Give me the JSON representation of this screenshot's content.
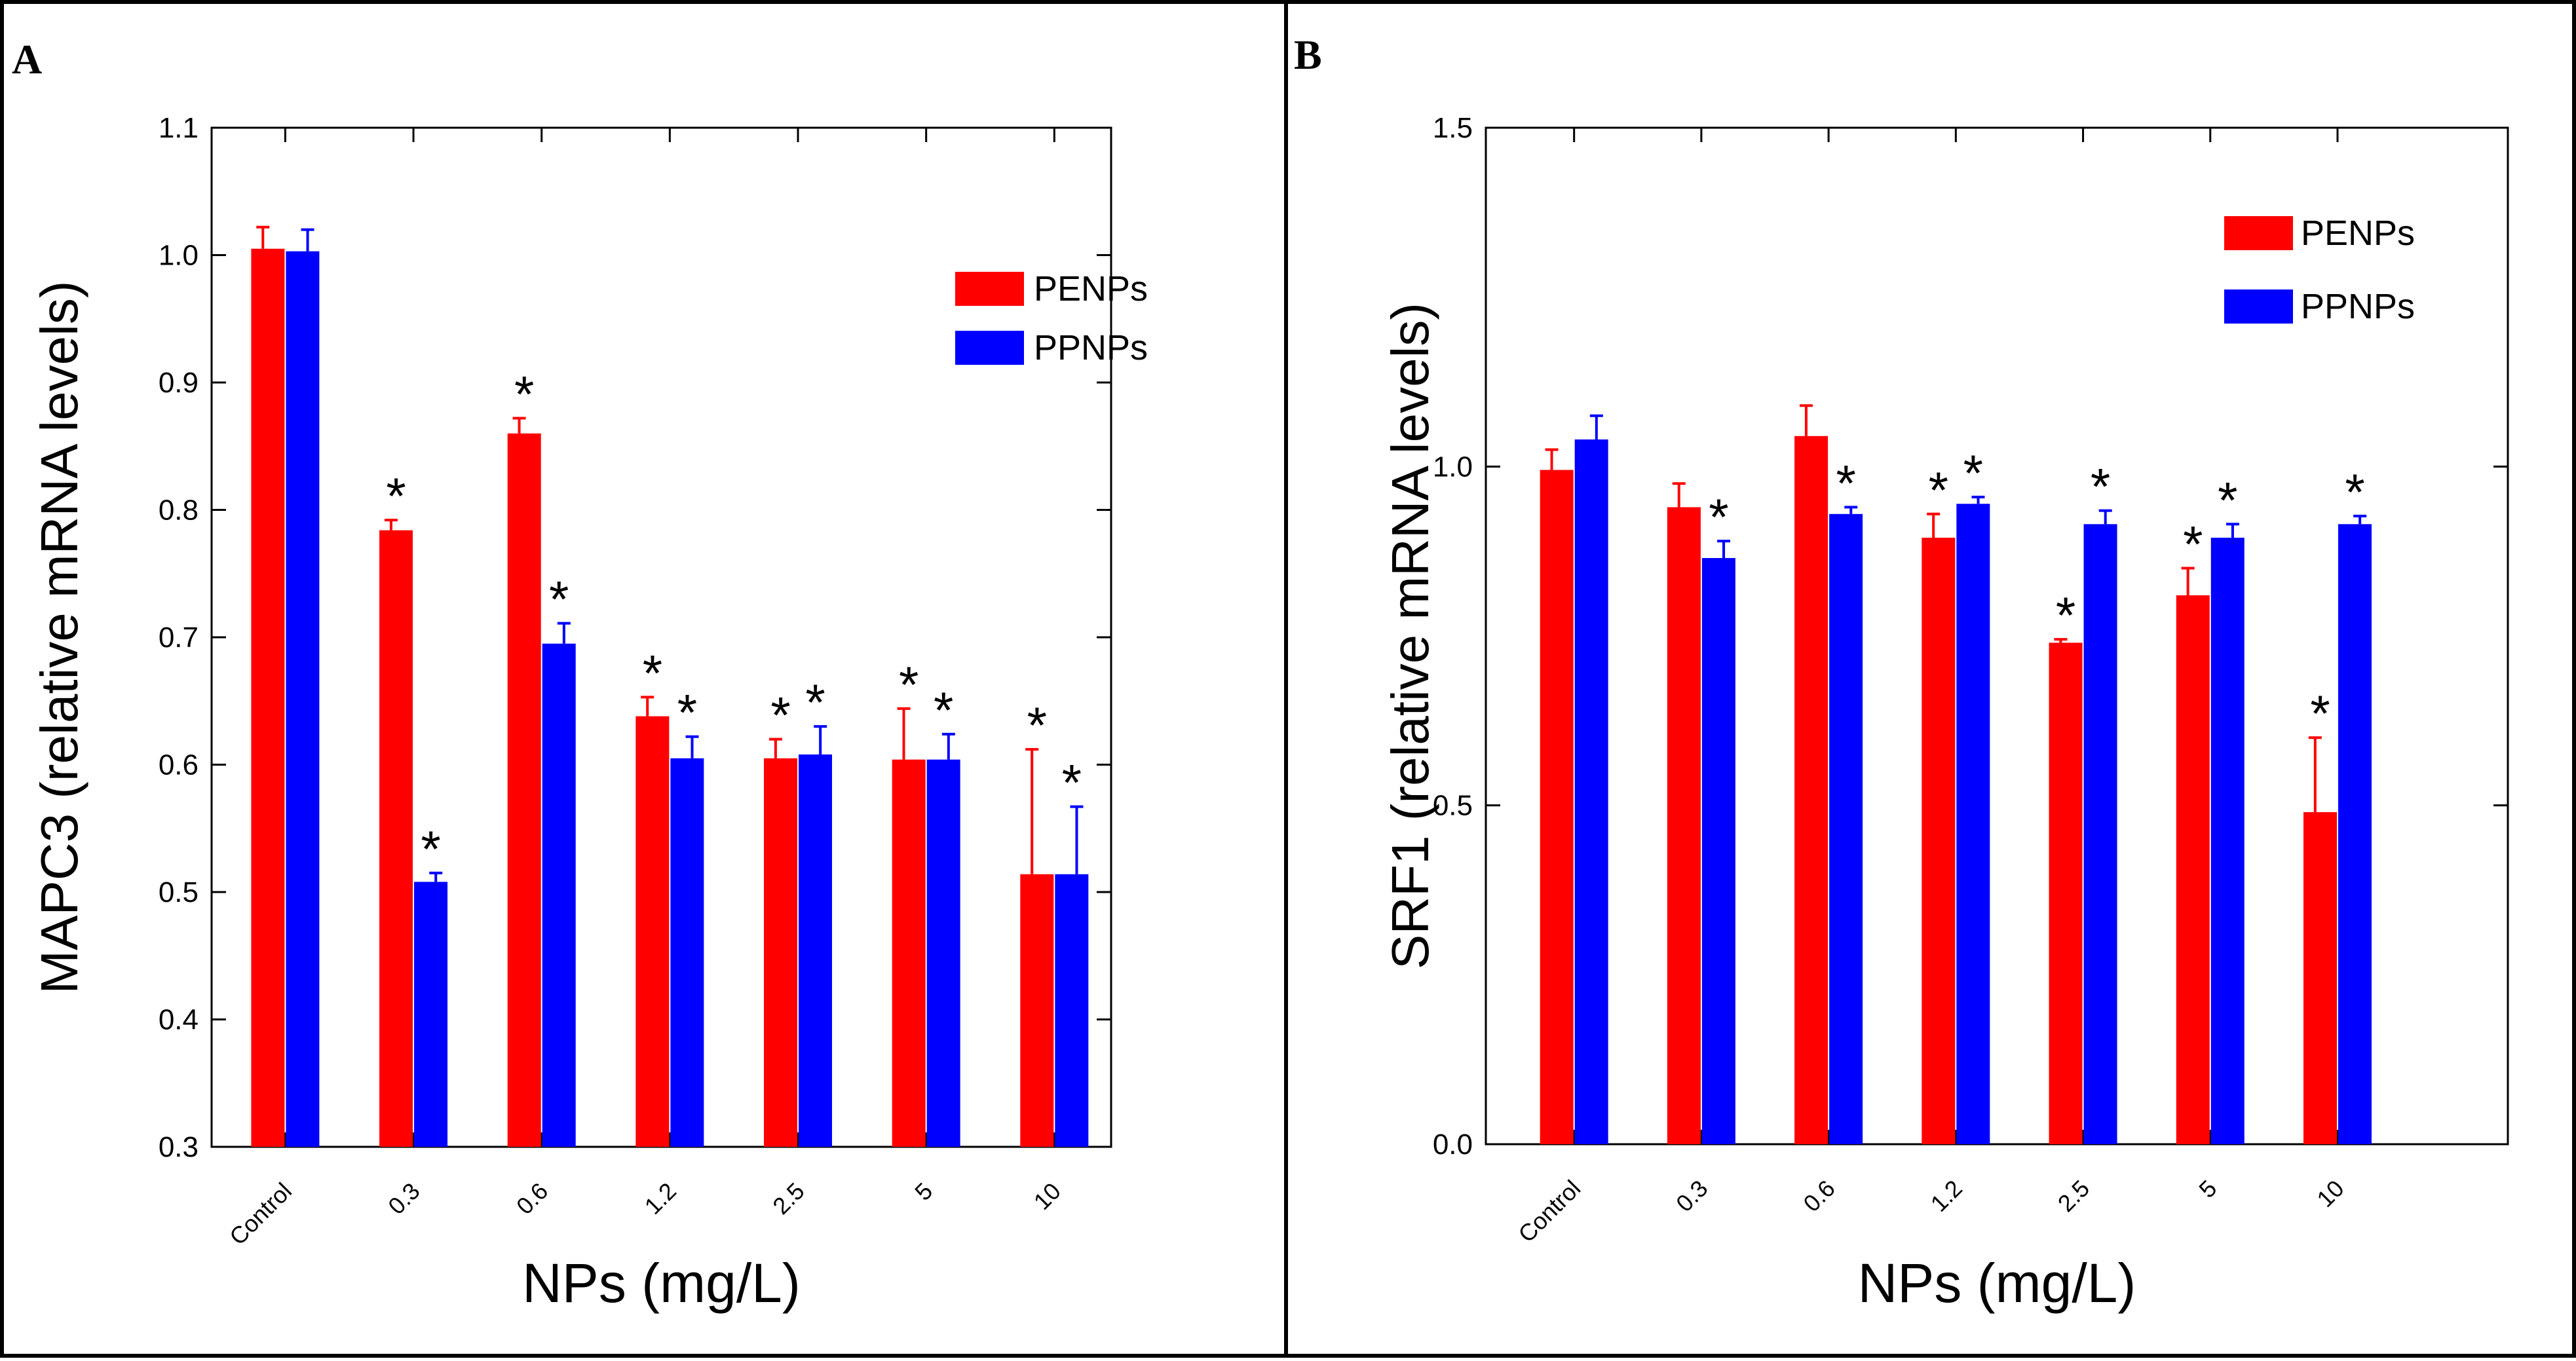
{
  "figure": {
    "panels": [
      "A",
      "B"
    ]
  },
  "colors": {
    "penps": "#ff0000",
    "ppnps": "#0000ff",
    "axis": "#000000",
    "background": "#ffffff"
  },
  "chart_data": [
    {
      "panel": "A",
      "type": "bar",
      "title": "",
      "xlabel": "NPs (mg/L)",
      "ylabel": "MAPC3 (relative mRNA levels)",
      "ylim": [
        0.3,
        1.1
      ],
      "yticks": [
        0.3,
        0.4,
        0.5,
        0.6,
        0.7,
        0.8,
        0.9,
        1.0,
        1.1
      ],
      "ytick_labels": [
        "0.3",
        "0.4",
        "0.5",
        "0.6",
        "0.7",
        "0.8",
        "0.9",
        "1.0",
        "1.1"
      ],
      "categories": [
        "Control",
        "0.3",
        "0.6",
        "1.2",
        "2.5",
        "5",
        "10"
      ],
      "legend_position": "top-right",
      "grid": false,
      "series": [
        {
          "name": "PENPs",
          "color": "#ff0000",
          "values": [
            1.005,
            0.784,
            0.86,
            0.638,
            0.605,
            0.604,
            0.514
          ],
          "errors": [
            0.017,
            0.008,
            0.012,
            0.015,
            0.015,
            0.04,
            0.098
          ],
          "significance": [
            "",
            "*",
            "*",
            "*",
            "*",
            "*",
            "*"
          ]
        },
        {
          "name": "PPNPs",
          "color": "#0000ff",
          "values": [
            1.003,
            0.508,
            0.695,
            0.605,
            0.608,
            0.604,
            0.514
          ],
          "errors": [
            0.017,
            0.007,
            0.016,
            0.017,
            0.022,
            0.02,
            0.053
          ],
          "significance": [
            "",
            "*",
            "*",
            "*",
            "*",
            "*",
            "*"
          ]
        }
      ]
    },
    {
      "panel": "B",
      "type": "bar",
      "title": "",
      "xlabel": "NPs (mg/L)",
      "ylabel": "SRF1 (relative mRNA levels)",
      "ylim": [
        0.0,
        1.5
      ],
      "yticks": [
        0.0,
        0.5,
        1.0,
        1.5
      ],
      "ytick_labels": [
        "0.0",
        "0.5",
        "1.0",
        "1.5"
      ],
      "categories": [
        "Control",
        "0.3",
        "0.6",
        "1.2",
        "2.5",
        "5",
        "10"
      ],
      "legend_position": "top-right",
      "grid": false,
      "series": [
        {
          "name": "PENPs",
          "color": "#ff0000",
          "values": [
            0.995,
            0.94,
            1.045,
            0.895,
            0.74,
            0.81,
            0.49
          ],
          "errors": [
            0.03,
            0.035,
            0.045,
            0.035,
            0.005,
            0.04,
            0.11
          ],
          "significance": [
            "",
            "",
            "",
            "*",
            "*",
            "*",
            "*"
          ]
        },
        {
          "name": "PPNPs",
          "color": "#0000ff",
          "values": [
            1.04,
            0.865,
            0.93,
            0.945,
            0.915,
            0.895,
            0.915
          ],
          "errors": [
            0.035,
            0.025,
            0.01,
            0.01,
            0.02,
            0.02,
            0.012
          ],
          "significance": [
            "",
            "*",
            "*",
            "*",
            "*",
            "*",
            "*"
          ]
        }
      ]
    }
  ]
}
